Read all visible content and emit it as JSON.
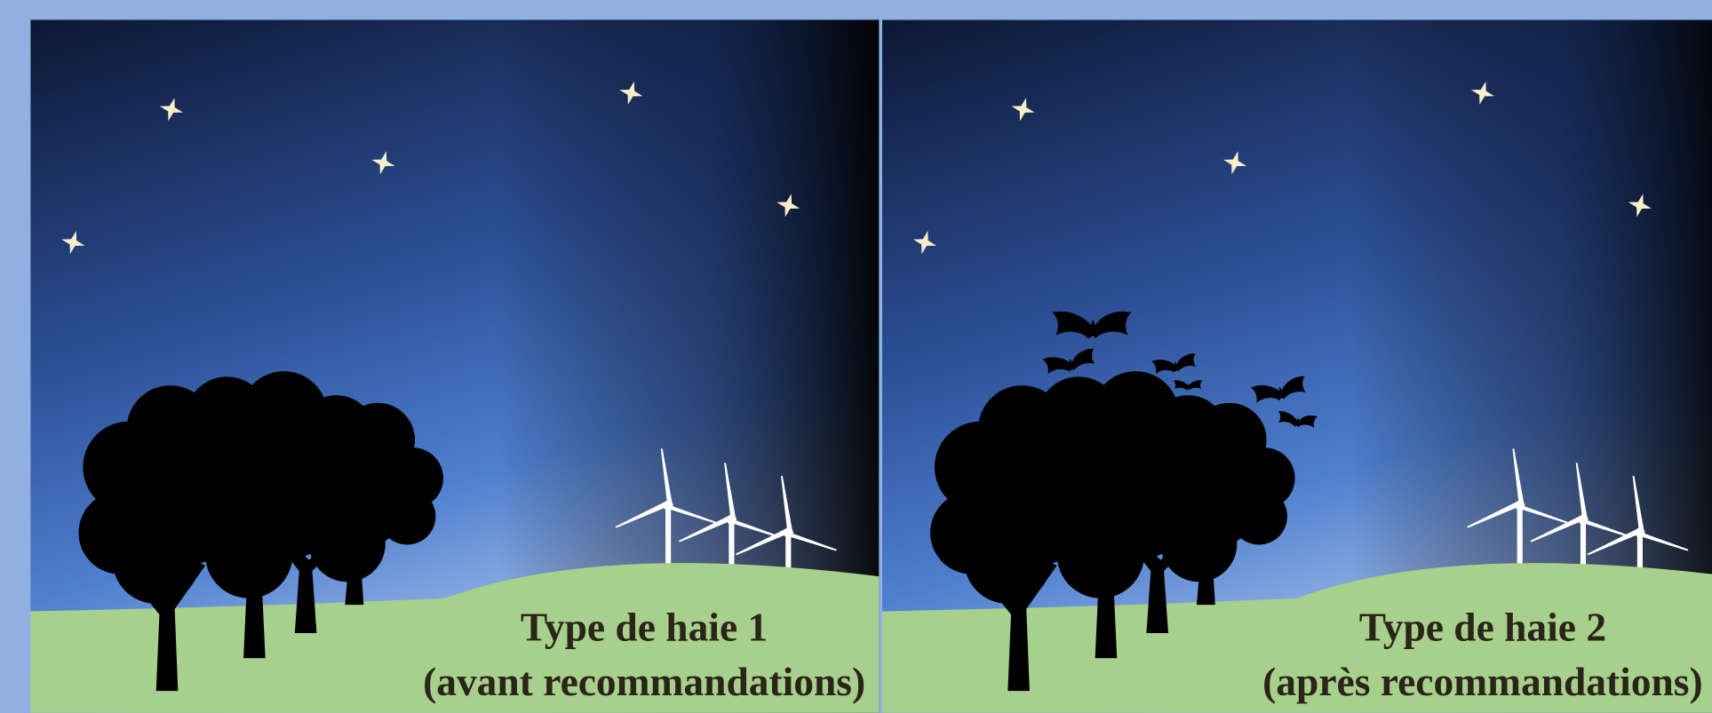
{
  "panels": [
    {
      "title": "Type de haie 1",
      "subtitle": "(avant recommandations)"
    },
    {
      "title": "Type de haie 2",
      "subtitle": "(après recommandations)"
    }
  ]
}
